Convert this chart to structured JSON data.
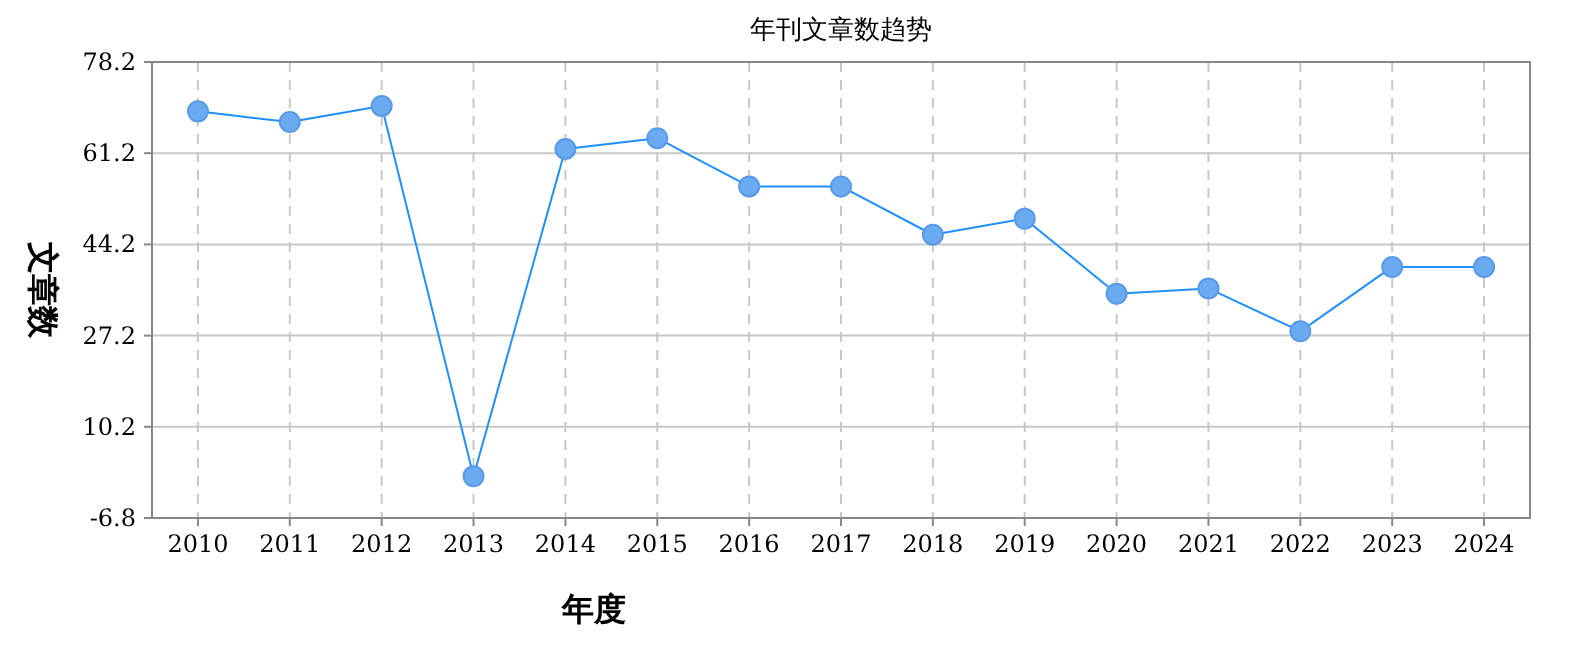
{
  "chart_data": {
    "type": "line",
    "title": "年刊文章数趋势",
    "xlabel": "年度",
    "ylabel": "文章数",
    "categories": [
      "2010",
      "2011",
      "2012",
      "2013",
      "2014",
      "2015",
      "2016",
      "2017",
      "2018",
      "2019",
      "2020",
      "2021",
      "2022",
      "2023",
      "2024"
    ],
    "series": [
      {
        "color": "#1e90ff",
        "values": [
          69,
          67,
          70,
          1,
          62,
          64,
          55,
          55,
          46,
          49,
          35,
          36,
          28,
          40,
          40
        ]
      }
    ],
    "ylim": [
      -6.8,
      78.2
    ],
    "yticks": [
      -6.8,
      10.2,
      27.2,
      44.2,
      61.2,
      78.2
    ],
    "grid": true,
    "marker": "circle",
    "line_style": "solid"
  }
}
